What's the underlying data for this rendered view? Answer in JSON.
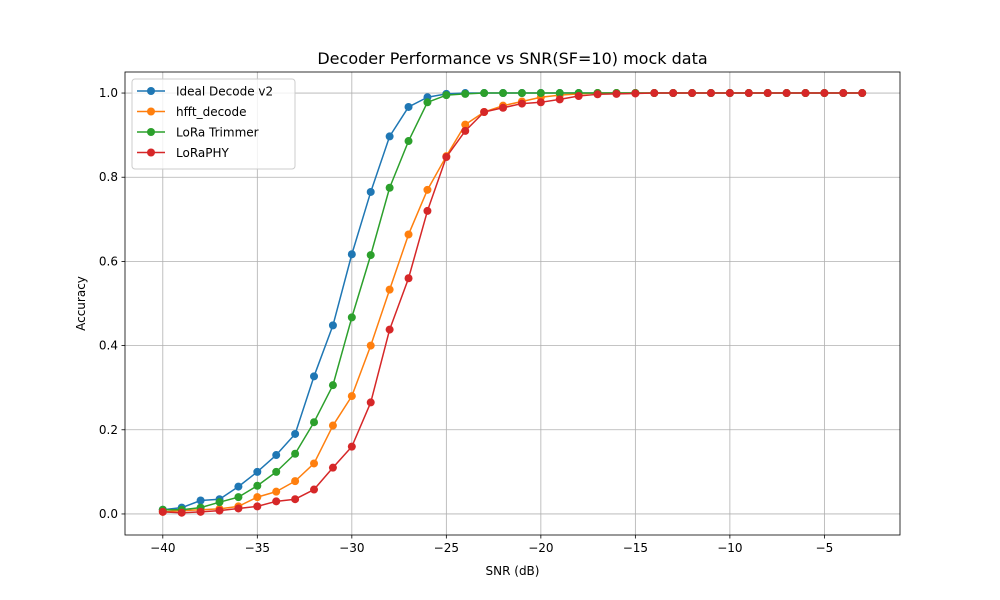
{
  "chart_data": {
    "type": "line",
    "title": "Decoder Performance vs SNR(SF=10) mock data",
    "xlabel": "SNR (dB)",
    "ylabel": "Accuracy",
    "xlim": [
      -42.0,
      -1.0
    ],
    "ylim": [
      -0.05,
      1.05
    ],
    "xticks": [
      -40,
      -35,
      -30,
      -25,
      -20,
      -15,
      -10,
      -5
    ],
    "xtick_labels": [
      "−40",
      "−35",
      "−30",
      "−25",
      "−20",
      "−15",
      "−10",
      "−5"
    ],
    "yticks": [
      0.0,
      0.2,
      0.4,
      0.6,
      0.8,
      1.0
    ],
    "ytick_labels": [
      "0.0",
      "0.2",
      "0.4",
      "0.6",
      "0.8",
      "1.0"
    ],
    "grid": true,
    "legend_position": "top-left",
    "x": [
      -40,
      -39,
      -38,
      -37,
      -36,
      -35,
      -34,
      -33,
      -32,
      -31,
      -30,
      -29,
      -28,
      -27,
      -26,
      -25,
      -24,
      -23,
      -22,
      -21,
      -20,
      -19,
      -18,
      -17,
      -16,
      -15,
      -14,
      -13,
      -12,
      -11,
      -10,
      -9,
      -8,
      -7,
      -6,
      -5,
      -4,
      -3
    ],
    "series": [
      {
        "name": "Ideal Decode v2",
        "color": "#1f77b4",
        "values": [
          0.01,
          0.015,
          0.032,
          0.035,
          0.065,
          0.1,
          0.14,
          0.19,
          0.327,
          0.448,
          0.617,
          0.765,
          0.897,
          0.967,
          0.99,
          0.998,
          1.0,
          1.0,
          1.0,
          1.0,
          1.0,
          1.0,
          1.0,
          1.0,
          1.0,
          1.0,
          1.0,
          1.0,
          1.0,
          1.0,
          1.0,
          1.0,
          1.0,
          1.0,
          1.0,
          1.0,
          1.0,
          1.0
        ]
      },
      {
        "name": "hfft_decode",
        "color": "#ff7f0e",
        "values": [
          0.005,
          0.008,
          0.01,
          0.012,
          0.018,
          0.04,
          0.053,
          0.078,
          0.12,
          0.21,
          0.28,
          0.4,
          0.533,
          0.664,
          0.77,
          0.85,
          0.925,
          0.955,
          0.97,
          0.98,
          0.99,
          0.995,
          0.998,
          1.0,
          1.0,
          1.0,
          1.0,
          1.0,
          1.0,
          1.0,
          1.0,
          1.0,
          1.0,
          1.0,
          1.0,
          1.0,
          1.0,
          1.0
        ]
      },
      {
        "name": "LoRa Trimmer",
        "color": "#2ca02c",
        "values": [
          0.01,
          0.01,
          0.015,
          0.028,
          0.04,
          0.067,
          0.1,
          0.143,
          0.218,
          0.306,
          0.467,
          0.615,
          0.775,
          0.886,
          0.978,
          0.995,
          0.998,
          1.0,
          1.0,
          1.0,
          1.0,
          1.0,
          1.0,
          1.0,
          1.0,
          1.0,
          1.0,
          1.0,
          1.0,
          1.0,
          1.0,
          1.0,
          1.0,
          1.0,
          1.0,
          1.0,
          1.0,
          1.0
        ]
      },
      {
        "name": "LoRaPHY",
        "color": "#d62728",
        "values": [
          0.005,
          0.003,
          0.005,
          0.008,
          0.013,
          0.018,
          0.03,
          0.035,
          0.058,
          0.11,
          0.16,
          0.265,
          0.438,
          0.56,
          0.72,
          0.848,
          0.91,
          0.955,
          0.965,
          0.975,
          0.978,
          0.985,
          0.993,
          0.997,
          0.998,
          0.999,
          1.0,
          1.0,
          1.0,
          1.0,
          1.0,
          1.0,
          1.0,
          1.0,
          1.0,
          1.0,
          1.0,
          1.0
        ]
      }
    ]
  }
}
